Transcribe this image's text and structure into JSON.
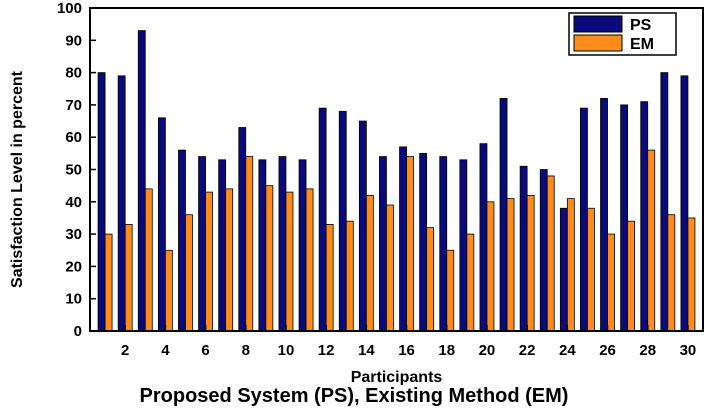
{
  "caption": "Proposed System (PS), Existing Method (EM)",
  "chart_data": {
    "type": "bar",
    "title": "",
    "xlabel": "Participants",
    "ylabel": "Satisfaction Level in percent",
    "ylim": [
      0,
      100
    ],
    "yticks": [
      0,
      10,
      20,
      30,
      40,
      50,
      60,
      70,
      80,
      90,
      100
    ],
    "categories": [
      1,
      2,
      3,
      4,
      5,
      6,
      7,
      8,
      9,
      10,
      11,
      12,
      13,
      14,
      15,
      16,
      17,
      18,
      19,
      20,
      21,
      22,
      23,
      24,
      25,
      26,
      27,
      28,
      29,
      30
    ],
    "xtick_labels": [
      "2",
      "4",
      "6",
      "8",
      "10",
      "12",
      "14",
      "16",
      "18",
      "20",
      "22",
      "24",
      "26",
      "28",
      "30"
    ],
    "legend_position": "top-right",
    "grid": false,
    "series": [
      {
        "name": "PS",
        "color": "#0a0a7a",
        "values": [
          80,
          79,
          93,
          66,
          56,
          54,
          53,
          63,
          53,
          54,
          53,
          69,
          68,
          65,
          54,
          57,
          55,
          54,
          53,
          58,
          72,
          51,
          50,
          38,
          69,
          72,
          70,
          71,
          80,
          79
        ]
      },
      {
        "name": "EM",
        "color": "#ff8c1a",
        "values": [
          30,
          33,
          44,
          25,
          36,
          43,
          44,
          54,
          45,
          43,
          44,
          33,
          34,
          42,
          39,
          54,
          32,
          25,
          30,
          40,
          41,
          42,
          48,
          41,
          38,
          30,
          34,
          56,
          36,
          35
        ]
      }
    ]
  }
}
